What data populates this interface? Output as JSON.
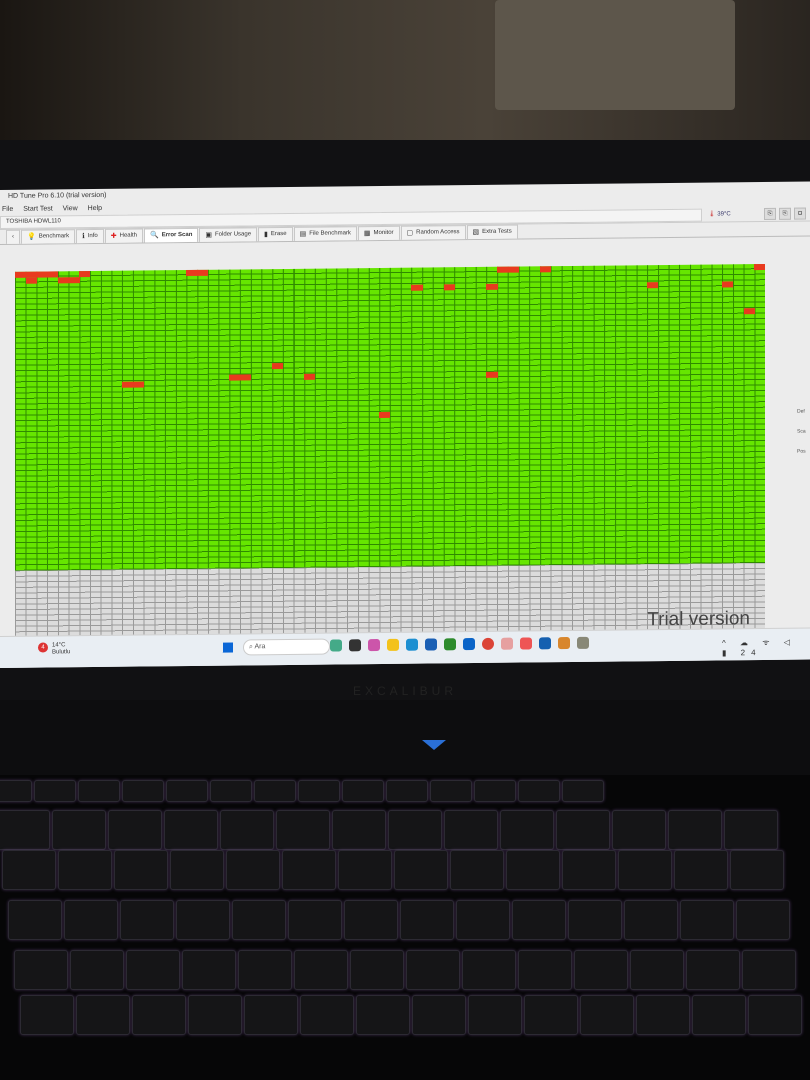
{
  "window": {
    "title": "HD Tune Pro 6.10 (trial version)"
  },
  "menu": [
    "File",
    "Start Test",
    "View",
    "Help"
  ],
  "drive": {
    "name": "TOSHIBA HDWL110",
    "temperature": "39°C"
  },
  "tabs": [
    {
      "label": "Benchmark",
      "icon": "lightbulb-icon"
    },
    {
      "label": "Info",
      "icon": "info-icon"
    },
    {
      "label": "Health",
      "icon": "health-cross-icon"
    },
    {
      "label": "Error Scan",
      "icon": "magnifier-icon",
      "active": true
    },
    {
      "label": "Folder Usage",
      "icon": "folder-icon"
    },
    {
      "label": "Erase",
      "icon": "trash-icon"
    },
    {
      "label": "File Benchmark",
      "icon": "file-icon"
    },
    {
      "label": "Monitor",
      "icon": "monitor-icon"
    },
    {
      "label": "Random Access",
      "icon": "random-access-icon"
    },
    {
      "label": "Extra Tests",
      "icon": "extra-tests-icon"
    }
  ],
  "error_scan": {
    "grid_columns": 70,
    "grid_rows": 66,
    "scanned_rows": 54,
    "colors": {
      "ok": "#66e600",
      "damaged": "#e83a1e",
      "unscanned": "#dcdcdc"
    },
    "damaged_blocks": [
      [
        0,
        0
      ],
      [
        0,
        1
      ],
      [
        0,
        2
      ],
      [
        0,
        3
      ],
      [
        0,
        6
      ],
      [
        0,
        16
      ],
      [
        0,
        17
      ],
      [
        0,
        45
      ],
      [
        0,
        46
      ],
      [
        0,
        49
      ],
      [
        0,
        69
      ],
      [
        1,
        1
      ],
      [
        1,
        4
      ],
      [
        1,
        5
      ],
      [
        3,
        37
      ],
      [
        3,
        40
      ],
      [
        3,
        44
      ],
      [
        3,
        59
      ],
      [
        3,
        66
      ],
      [
        8,
        68
      ],
      [
        17,
        24
      ],
      [
        19,
        20
      ],
      [
        19,
        21
      ],
      [
        19,
        27
      ],
      [
        19,
        44
      ],
      [
        20,
        10
      ],
      [
        20,
        11
      ],
      [
        26,
        34
      ]
    ],
    "watermark": "Trial version",
    "side_labels": [
      "Def",
      "Sca",
      "Pos"
    ]
  },
  "taskbar": {
    "weather_temp": "14°C",
    "weather_text": "Bulutlu",
    "weather_badge": "4",
    "search_placeholder": "Ara",
    "time_partial": "24"
  },
  "laptop_brand": "EXCALIBUR"
}
